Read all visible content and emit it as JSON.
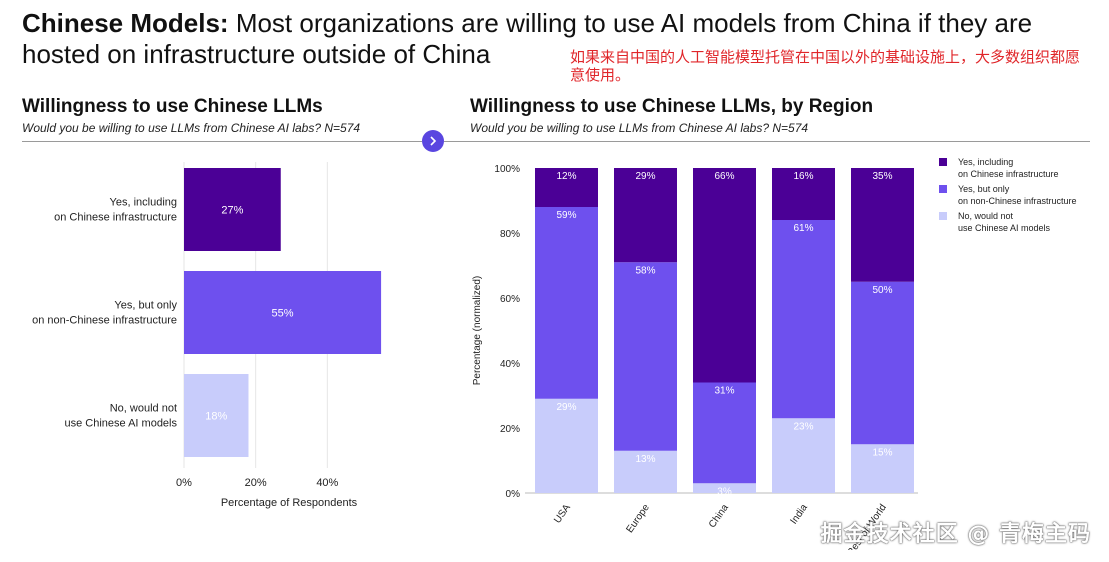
{
  "header": {
    "title_bold": "Chinese Models:",
    "title_rest": " Most organizations are willing to use AI models from China if they are hosted on infrastructure outside of China",
    "cn_annotation": "如果来自中国的人工智能模型托管在中国以外的基础设施上，大多数组织都愿意使用。"
  },
  "left_panel": {
    "title": "Willingness to use Chinese LLMs",
    "subtitle": "Would you be willing to use LLMs from Chinese AI labs? N=574"
  },
  "right_panel": {
    "title": "Willingness to use Chinese LLMs, by Region",
    "subtitle": "Would you be willing to use LLMs from Chinese AI labs? N=574"
  },
  "watermark": "掘金技术社区 @ 青梅主码",
  "colors": {
    "dark": "#4b0096",
    "mid": "#6e50ee",
    "light": "#c8ccfb",
    "badge": "#5a46e0"
  },
  "icons": {
    "badge": "chevron-right-icon"
  },
  "chart_data": [
    {
      "type": "bar",
      "orientation": "horizontal",
      "categories": [
        [
          "Yes, including",
          "on Chinese infrastructure"
        ],
        [
          "Yes, but only",
          "on non-Chinese infrastructure"
        ],
        [
          "No, would not",
          "use Chinese AI models"
        ]
      ],
      "values": [
        27,
        55,
        18
      ],
      "data_labels": [
        "27%",
        "55%",
        "18%"
      ],
      "colors": [
        "#4b0096",
        "#6e50ee",
        "#c8ccfb"
      ],
      "xlabel": "Percentage of Respondents",
      "xticks": [
        "0%",
        "20%",
        "40%"
      ],
      "xlim": [
        0,
        60
      ],
      "grid": true
    },
    {
      "type": "bar",
      "stacked": true,
      "categories": [
        "USA",
        "Europe",
        "China",
        "India",
        "Rest of World"
      ],
      "category_labels": [
        "USA",
        "Europe",
        "China",
        "India",
        "Rest of World"
      ],
      "series": [
        {
          "name": "No, would not use Chinese AI models",
          "legend": [
            "No, would not",
            "use Chinese AI models"
          ],
          "color": "#c8ccfb",
          "values": [
            29,
            13,
            3,
            23,
            15
          ],
          "labels": [
            "29%",
            "13%",
            "3%",
            "23%",
            "15%"
          ]
        },
        {
          "name": "Yes, but only on non-Chinese infrastructure",
          "legend": [
            "Yes, but only",
            "on non-Chinese infrastructure"
          ],
          "color": "#6e50ee",
          "values": [
            59,
            58,
            31,
            61,
            50
          ],
          "labels": [
            "59%",
            "58%",
            "31%",
            "61%",
            "50%"
          ]
        },
        {
          "name": "Yes, including on Chinese infrastructure",
          "legend": [
            "Yes, including",
            "on Chinese infrastructure"
          ],
          "color": "#4b0096",
          "values": [
            12,
            29,
            66,
            16,
            35
          ],
          "labels": [
            "12%",
            "29%",
            "66%",
            "16%",
            "35%"
          ]
        }
      ],
      "ylabel": "Percentage (normalized)",
      "yticks": [
        "0%",
        "20%",
        "40%",
        "60%",
        "80%",
        "100%"
      ],
      "ylim": [
        0,
        100
      ],
      "legend_position": "top-right"
    }
  ]
}
